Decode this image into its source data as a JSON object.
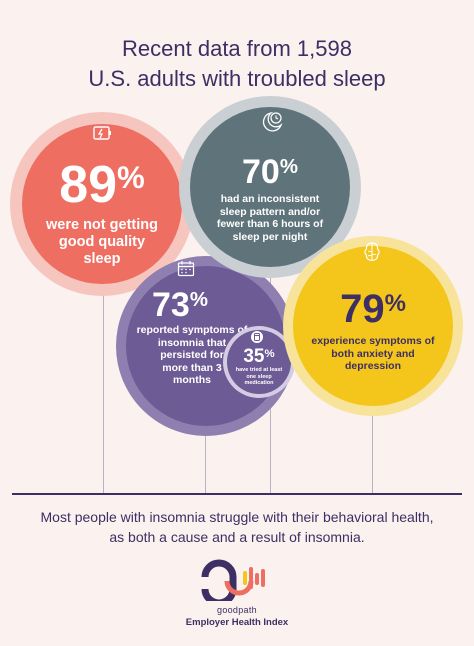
{
  "title": {
    "line1": "Recent data from 1,598",
    "line2": "U.S. adults with troubled sleep"
  },
  "stats": {
    "s89": {
      "number": "89",
      "symbol": "%",
      "line1": "were not getting",
      "line2": "good quality",
      "line3": "sleep",
      "color": "#ee6e62",
      "icon": "battery-low-icon"
    },
    "s70": {
      "number": "70",
      "symbol": "%",
      "line1": "had an inconsistent",
      "line2": "sleep pattern and/or",
      "line3": "fewer than 6 hours of",
      "line4": "sleep per night",
      "color": "#5f747a",
      "icon": "moon-clock-icon"
    },
    "s73": {
      "number": "73",
      "symbol": "%",
      "line1": "reported symptoms of",
      "line2": "insomnia that",
      "line3": "persisted for",
      "line4": "more than 3",
      "line5": "months",
      "color": "#6c5b95",
      "icon": "calendar-icon"
    },
    "s35": {
      "number": "35",
      "symbol": "%",
      "line1": "have tried at least",
      "line2": "one sleep",
      "line3": "medication",
      "color": "#6c5b95",
      "icon": "pill-bottle-icon"
    },
    "s79": {
      "number": "79",
      "symbol": "%",
      "line1": "experience symptoms of",
      "line2": "both anxiety and",
      "line3": "depression",
      "color": "#f4c51a",
      "icon": "brain-icon"
    }
  },
  "footer": {
    "line1": "Most people with insomnia struggle with their behavioral health,",
    "line2": "as both a cause and a result of insomnia."
  },
  "logo": {
    "brand": "goodpath",
    "index_name": "Employer Health Index"
  }
}
